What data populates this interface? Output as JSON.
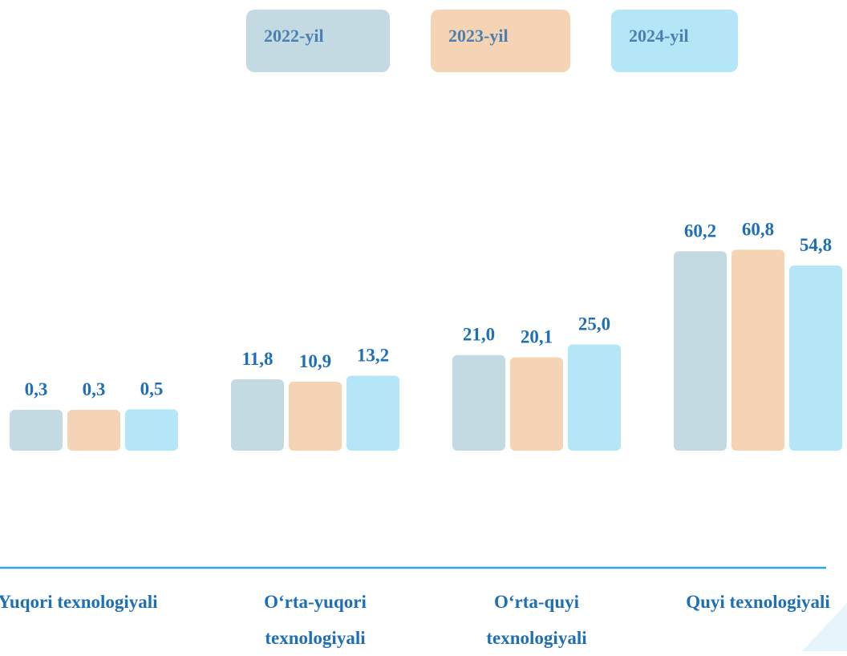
{
  "chart_data": {
    "type": "bar",
    "categories": [
      "Yuqori texnologiyali",
      "O‘rta-yuqori texnologiyali",
      "O‘rta-quyi texnologiyali",
      "Quyi texnologiyali"
    ],
    "series": [
      {
        "name": "2022-yil",
        "color": "#c3dae3",
        "values": [
          0.3,
          11.8,
          21.0,
          60.2
        ],
        "value_labels": [
          "0,3",
          "11,8",
          "21,0",
          "60,2"
        ]
      },
      {
        "name": "2023-yil",
        "color": "#f5d3b5",
        "values": [
          0.3,
          10.9,
          20.1,
          60.8
        ],
        "value_labels": [
          "0,3",
          "10,9",
          "20,1",
          "60,8"
        ]
      },
      {
        "name": "2024-yil",
        "color": "#b4e6f7",
        "values": [
          0.5,
          13.2,
          25.0,
          54.8
        ],
        "value_labels": [
          "0,5",
          "13,2",
          "25,0",
          "54,8"
        ]
      }
    ]
  }
}
